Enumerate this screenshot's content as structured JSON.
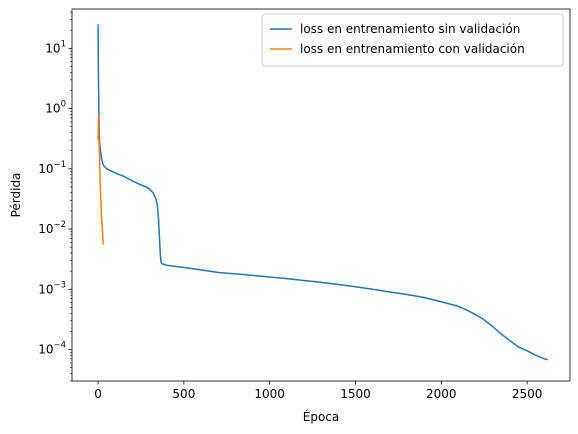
{
  "chart_data": {
    "type": "line",
    "title": "",
    "xlabel": "Época",
    "ylabel": "Pérdida",
    "xscale": "linear",
    "yscale": "log",
    "xlim": [
      -152,
      2750
    ],
    "ylim": [
      3e-05,
      45
    ],
    "xticks": [
      0,
      500,
      1000,
      1500,
      2000,
      2500
    ],
    "yticks": [
      {
        "value": 0.0001,
        "base": "10",
        "exp": "−4"
      },
      {
        "value": 0.001,
        "base": "10",
        "exp": "−3"
      },
      {
        "value": 0.01,
        "base": "10",
        "exp": "−2"
      },
      {
        "value": 0.1,
        "base": "10",
        "exp": "−1"
      },
      {
        "value": 1,
        "base": "10",
        "exp": "0"
      },
      {
        "value": 10,
        "base": "10",
        "exp": "1"
      }
    ],
    "grid": false,
    "legend_position": "top-right",
    "series": [
      {
        "name": "loss en entrenamiento sin validación",
        "color": "#1f77b4",
        "x": [
          0,
          2,
          4,
          6,
          8,
          10,
          14,
          20,
          30,
          50,
          100,
          150,
          200,
          250,
          280,
          300,
          320,
          335,
          345,
          352,
          358,
          362,
          366,
          370,
          380,
          400,
          500,
          600,
          700,
          800,
          900,
          1000,
          1100,
          1200,
          1300,
          1400,
          1500,
          1600,
          1700,
          1800,
          1900,
          2000,
          2100,
          2150,
          2200,
          2250,
          2300,
          2350,
          2400,
          2450,
          2500,
          2550,
          2600,
          2620
        ],
        "y": [
          25,
          3,
          1.4,
          0.5,
          0.3,
          0.25,
          0.2,
          0.15,
          0.115,
          0.1,
          0.085,
          0.075,
          0.063,
          0.054,
          0.05,
          0.046,
          0.04,
          0.033,
          0.025,
          0.015,
          0.007,
          0.004,
          0.003,
          0.0027,
          0.0026,
          0.0025,
          0.0023,
          0.0021,
          0.0019,
          0.0018,
          0.0017,
          0.0016,
          0.0015,
          0.0014,
          0.0013,
          0.0012,
          0.0011,
          0.001,
          0.0009,
          0.00082,
          0.00073,
          0.00062,
          0.00052,
          0.00045,
          0.00038,
          0.00031,
          0.00024,
          0.00018,
          0.00014,
          0.00011,
          9.5e-05,
          8e-05,
          7e-05,
          6.8e-05
        ]
      },
      {
        "name": "loss en entrenamiento con validación",
        "color": "#ff7f0e",
        "x": [
          0,
          2,
          4,
          6,
          8,
          10,
          12,
          14,
          16,
          18,
          20,
          22,
          24,
          26,
          28,
          30
        ],
        "y": [
          0.3,
          0.75,
          0.4,
          0.25,
          0.18,
          0.1,
          0.06,
          0.045,
          0.03,
          0.024,
          0.016,
          0.013,
          0.011,
          0.009,
          0.007,
          0.0055
        ]
      }
    ]
  }
}
